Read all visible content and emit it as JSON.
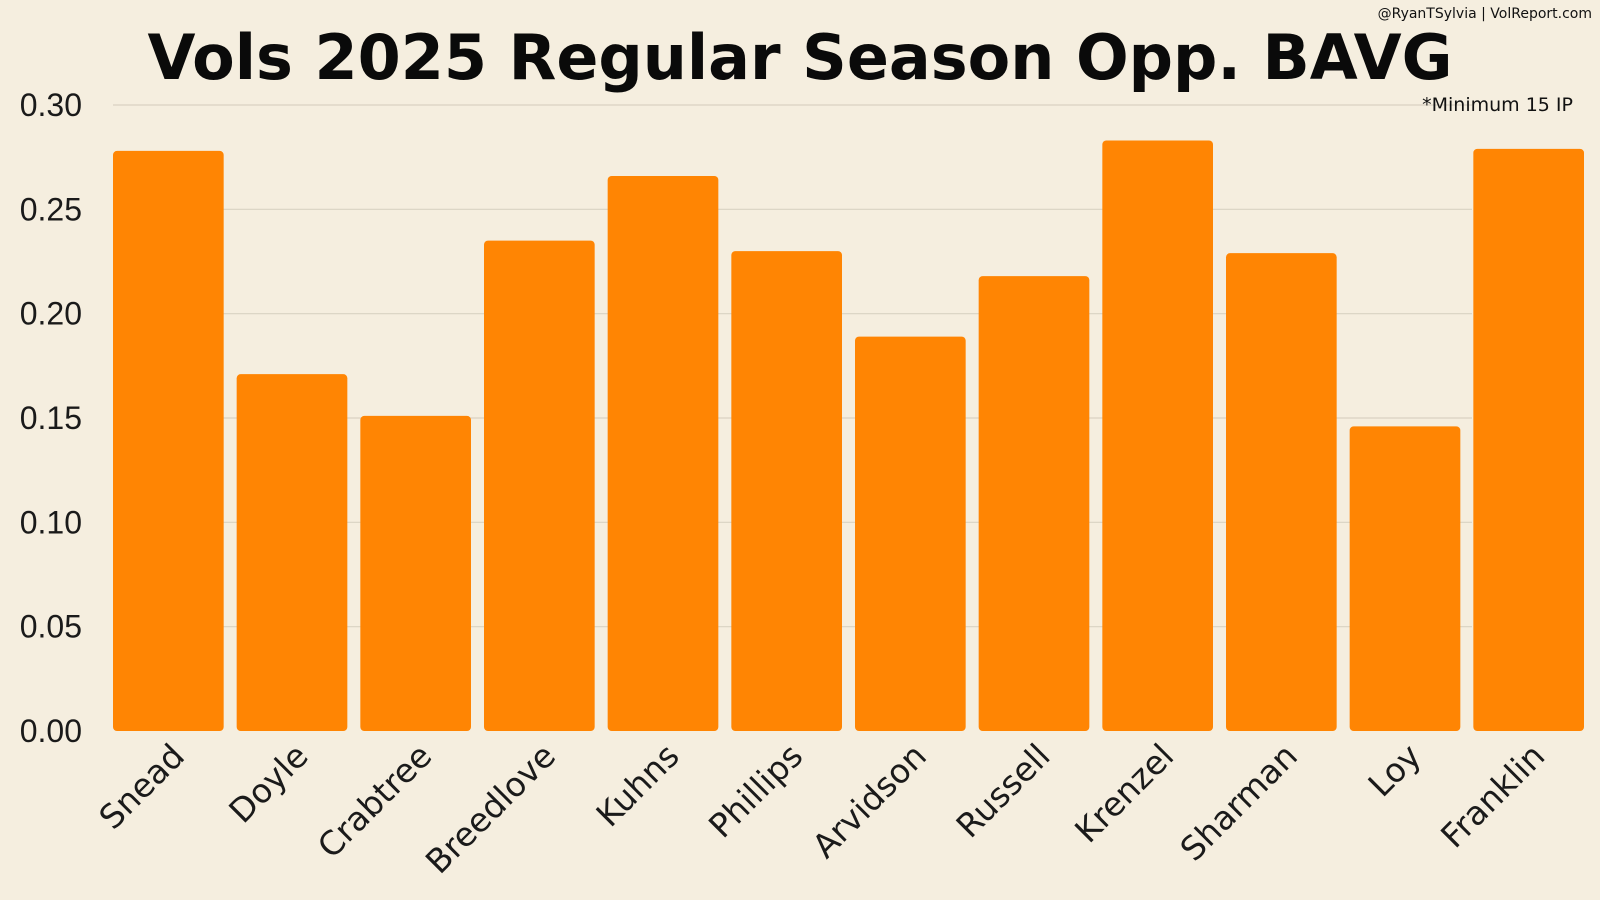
{
  "header": {
    "credit": "@RyanTSylvia | VolReport.com",
    "note": "*Minimum 15 IP"
  },
  "colors": {
    "background": "#f5eedf",
    "bar": "#ff8503",
    "grid": "#d9d2c2",
    "text": "#0a0a0a"
  },
  "chart_data": {
    "type": "bar",
    "title": "Vols 2025 Regular Season Opp. BAVG",
    "xlabel": "",
    "ylabel": "",
    "categories": [
      "Snead",
      "Doyle",
      "Crabtree",
      "Breedlove",
      "Kuhns",
      "Phillips",
      "Arvidson",
      "Russell",
      "Krenzel",
      "Sharman",
      "Loy",
      "Franklin"
    ],
    "values": [
      0.278,
      0.171,
      0.151,
      0.235,
      0.266,
      0.23,
      0.189,
      0.218,
      0.283,
      0.229,
      0.146,
      0.279
    ],
    "ylim": [
      0,
      0.3
    ],
    "yticks": [
      "0.00",
      "0.05",
      "0.10",
      "0.15",
      "0.20",
      "0.25",
      "0.30"
    ],
    "grid": true,
    "legend": "none"
  }
}
